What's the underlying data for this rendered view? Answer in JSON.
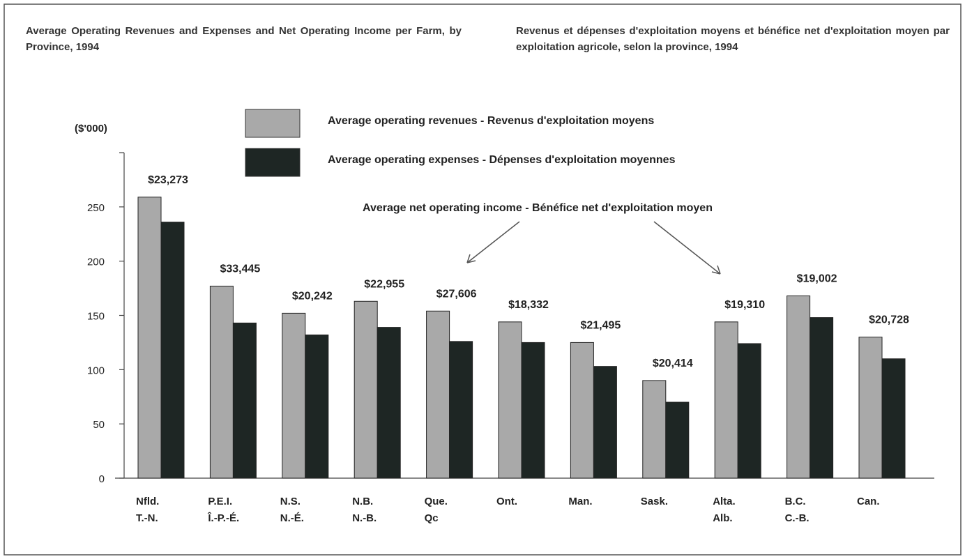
{
  "chart_data": {
    "type": "bar",
    "title": "Average Operating Revenues and Expenses and Net Operating Income per Farm, by Province, 1994",
    "title_fr": "Revenus et dépenses d'exploitation moyens et bénéfice net d'exploitation moyen par exploitation agricole, selon la province, 1994",
    "y_label": "($'000)",
    "categories": [
      [
        "Nfld.",
        "T.-N."
      ],
      [
        "P.E.I.",
        "Î.-P.-É."
      ],
      [
        "N.S.",
        "N.-É."
      ],
      [
        "N.B.",
        "N.-B."
      ],
      [
        "Que.",
        "Qc"
      ],
      [
        "Ont."
      ],
      [
        "Man."
      ],
      [
        "Sask."
      ],
      [
        "Alta.",
        "Alb."
      ],
      [
        "B.C.",
        "C.-B."
      ],
      [
        "Can."
      ]
    ],
    "series": [
      {
        "name": "Average operating revenues - Revenus d'exploitation moyens",
        "color": "#a9a9a9",
        "values": [
          259,
          177,
          152,
          163,
          154,
          144,
          125,
          90,
          144,
          168,
          130
        ]
      },
      {
        "name": "Average operating expenses - Dépenses d'exploitation moyennes",
        "color": "#1e2624",
        "values": [
          236,
          143,
          132,
          139,
          126,
          125,
          103,
          70,
          124,
          148,
          110
        ]
      }
    ],
    "net_income_name": "Average net operating income - Bénéfice net d'exploitation moyen",
    "net_income_labels": [
      "$23,273",
      "$33,445",
      "$20,242",
      "$22,955",
      "$27,606",
      "$18,332",
      "$21,495",
      "$20,414",
      "$19,310",
      "$19,002",
      "$20,728"
    ],
    "ylim": [
      0,
      300
    ],
    "yticks": [
      0,
      50,
      100,
      150,
      200,
      250
    ]
  }
}
